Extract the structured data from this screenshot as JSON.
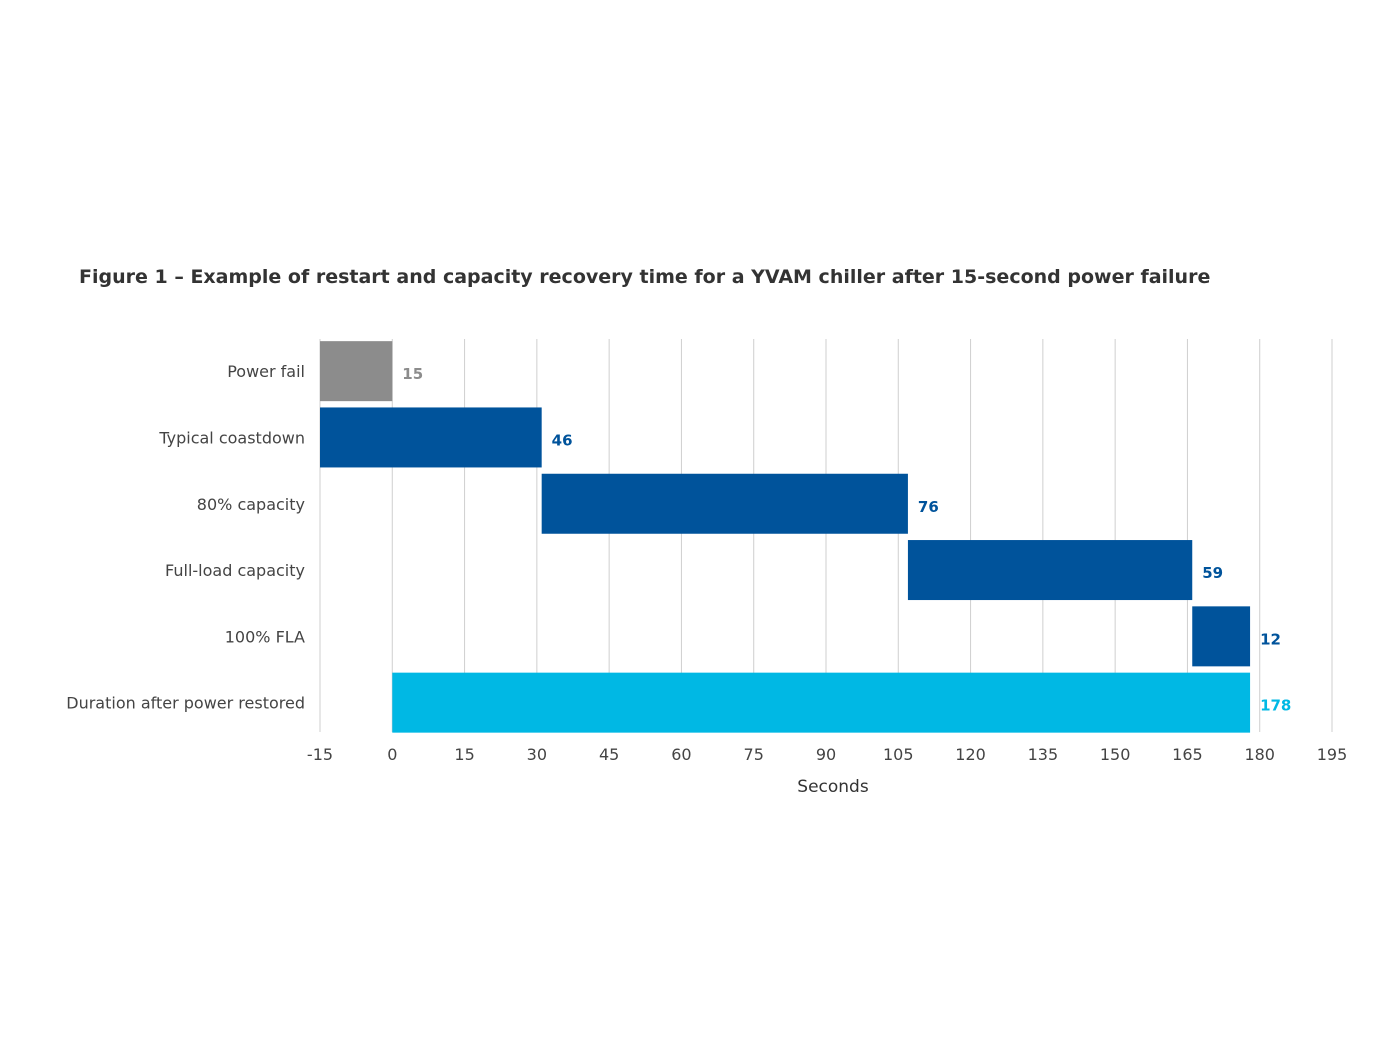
{
  "chart_data": {
    "type": "bar",
    "orientation": "horizontal",
    "title": "Figure 1 – Example of restart and capacity recovery time for a YVAM chiller after 15-second power failure",
    "xlabel": "Seconds",
    "ylabel": "",
    "xlim": [
      -15,
      195
    ],
    "xticks": [
      "-15",
      "0",
      "15",
      "30",
      "45",
      "60",
      "75",
      "90",
      "105",
      "120",
      "135",
      "150",
      "165",
      "180",
      "195"
    ],
    "grid": "vertical",
    "legend": "none",
    "categories": [
      "Power fail",
      "Typical coastdown",
      "80% capacity",
      "Full-load capacity",
      "100% FLA",
      "Duration after power restored"
    ],
    "bars": [
      {
        "category": "Power fail",
        "start": -15,
        "end": 0,
        "label": "15",
        "color": "#8c8c8c"
      },
      {
        "category": "Typical coastdown",
        "start": -15,
        "end": 31,
        "label": "46",
        "color": "#00539b"
      },
      {
        "category": "80% capacity",
        "start": 31,
        "end": 107,
        "label": "76",
        "color": "#00539b"
      },
      {
        "category": "Full-load capacity",
        "start": 107,
        "end": 166,
        "label": "59",
        "color": "#00539b"
      },
      {
        "category": "100% FLA",
        "start": 166,
        "end": 178,
        "label": "12",
        "color": "#00539b"
      },
      {
        "category": "Duration after power restored",
        "start": 0,
        "end": 178,
        "label": "178",
        "color": "#00b8e4"
      }
    ]
  }
}
